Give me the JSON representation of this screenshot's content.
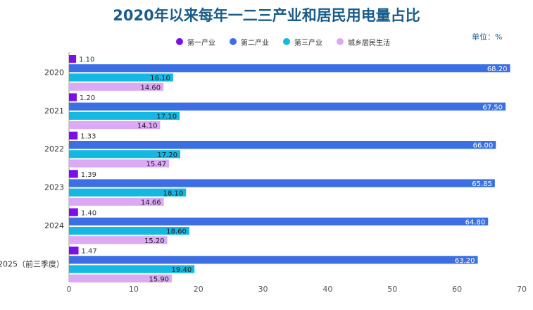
{
  "chart_data": {
    "type": "bar",
    "orientation": "horizontal",
    "title": "2020年以来每年一二三产业和居民用电量占比",
    "unit_label": "单位：%",
    "categories": [
      "2020",
      "2021",
      "2022",
      "2023",
      "2024",
      "2025（前三季度）"
    ],
    "series": [
      {
        "name": "第一产业",
        "color": "#7a0fe8",
        "values": [
          1.1,
          1.2,
          1.33,
          1.39,
          1.4,
          1.47
        ]
      },
      {
        "name": "第二产业",
        "color": "#3b6fe3",
        "values": [
          68.2,
          67.5,
          66.0,
          65.85,
          64.8,
          63.2
        ]
      },
      {
        "name": "第三产业",
        "color": "#14b8e0",
        "values": [
          16.1,
          17.1,
          17.2,
          18.1,
          18.6,
          19.4
        ]
      },
      {
        "name": "城乡居民生活",
        "color": "#dcaaf5",
        "values": [
          14.6,
          14.1,
          15.47,
          14.66,
          15.2,
          15.9
        ]
      }
    ],
    "xlim": [
      0,
      70
    ],
    "xticks": [
      "0",
      "10",
      "20",
      "30",
      "40",
      "50",
      "60",
      "70"
    ],
    "grid": false,
    "legend_position": "top"
  }
}
